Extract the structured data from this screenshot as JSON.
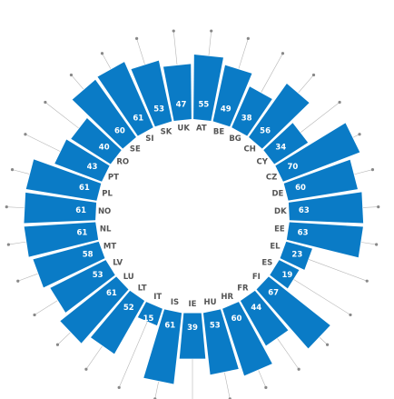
{
  "chart_data": {
    "type": "bar",
    "layout": "radial",
    "categories": [
      "AT",
      "BE",
      "BG",
      "CH",
      "CY",
      "CZ",
      "DE",
      "DK",
      "EE",
      "EL",
      "ES",
      "FI",
      "FR",
      "HR",
      "HU",
      "IE",
      "IS",
      "IT",
      "LT",
      "LU",
      "LV",
      "MT",
      "NL",
      "NO",
      "PL",
      "PT",
      "RO",
      "SE",
      "SI",
      "SK",
      "UK"
    ],
    "values": [
      55,
      49,
      38,
      56,
      34,
      70,
      60,
      63,
      63,
      23,
      19,
      67,
      44,
      60,
      53,
      39,
      61,
      15,
      52,
      61,
      53,
      58,
      61,
      61,
      61,
      43,
      40,
      60,
      61,
      53,
      47
    ],
    "bar_color": "#0a7bc6",
    "leader_line_color": "#b5b5b5",
    "leader_dot_color": "#888888",
    "grid": false
  }
}
